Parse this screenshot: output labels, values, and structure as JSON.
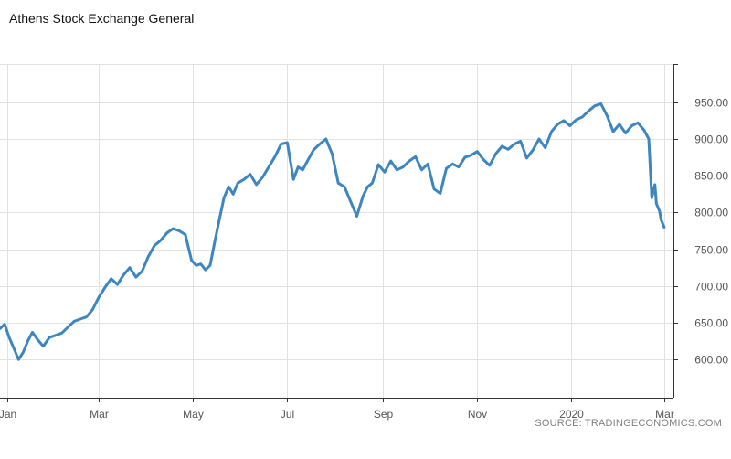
{
  "chart_data": {
    "type": "line",
    "title": "Athens Stock Exchange General",
    "source": "SOURCE: TRADINGECONOMICS.COM",
    "x_tick_labels": [
      "Jan",
      "Mar",
      "May",
      "Jul",
      "Sep",
      "Nov",
      "2020",
      "Mar"
    ],
    "y_ticks": [
      600,
      650,
      700,
      750,
      800,
      850,
      900,
      950
    ],
    "y_tick_labels": [
      "600.00",
      "650.00",
      "700.00",
      "750.00",
      "800.00",
      "850.00",
      "900.00",
      "950.00"
    ],
    "ylim": [
      548,
      1002
    ],
    "xlim": [
      "2018-12-27",
      "2020-03-07"
    ],
    "grid": true,
    "colors": {
      "line": "#3d86c0",
      "grid": "#e2e2e2",
      "axis": "#333333"
    },
    "series": [
      {
        "x": [
          "2018-12-27",
          "2018-12-30",
          "2019-01-02",
          "2019-01-05",
          "2019-01-08",
          "2019-01-11",
          "2019-01-14",
          "2019-01-17",
          "2019-01-20",
          "2019-01-24",
          "2019-01-28",
          "2019-02-01",
          "2019-02-05",
          "2019-02-09",
          "2019-02-13",
          "2019-02-17",
          "2019-02-21",
          "2019-02-25",
          "2019-03-01",
          "2019-03-05",
          "2019-03-09",
          "2019-03-13",
          "2019-03-17",
          "2019-03-21",
          "2019-03-25",
          "2019-03-29",
          "2019-04-02",
          "2019-04-06",
          "2019-04-10",
          "2019-04-14",
          "2019-04-18",
          "2019-04-22",
          "2019-04-26",
          "2019-04-30",
          "2019-05-03",
          "2019-05-06",
          "2019-05-09",
          "2019-05-12",
          "2019-05-15",
          "2019-05-18",
          "2019-05-21",
          "2019-05-24",
          "2019-05-27",
          "2019-05-30",
          "2019-06-03",
          "2019-06-07",
          "2019-06-11",
          "2019-06-15",
          "2019-06-19",
          "2019-06-23",
          "2019-06-27",
          "2019-07-01",
          "2019-07-05",
          "2019-07-08",
          "2019-07-11",
          "2019-07-14",
          "2019-07-18",
          "2019-07-22",
          "2019-07-26",
          "2019-07-30",
          "2019-08-03",
          "2019-08-07",
          "2019-08-11",
          "2019-08-15",
          "2019-08-19",
          "2019-08-22",
          "2019-08-25",
          "2019-08-29",
          "2019-09-02",
          "2019-09-06",
          "2019-09-10",
          "2019-09-14",
          "2019-09-18",
          "2019-09-22",
          "2019-09-26",
          "2019-09-30",
          "2019-10-04",
          "2019-10-08",
          "2019-10-12",
          "2019-10-16",
          "2019-10-20",
          "2019-10-24",
          "2019-10-28",
          "2019-11-01",
          "2019-11-05",
          "2019-11-09",
          "2019-11-13",
          "2019-11-17",
          "2019-11-21",
          "2019-11-25",
          "2019-11-29",
          "2019-12-03",
          "2019-12-07",
          "2019-12-11",
          "2019-12-15",
          "2019-12-19",
          "2019-12-23",
          "2019-12-27",
          "2019-12-31",
          "2020-01-04",
          "2020-01-08",
          "2020-01-12",
          "2020-01-16",
          "2020-01-20",
          "2020-01-24",
          "2020-01-28",
          "2020-02-01",
          "2020-02-05",
          "2020-02-09",
          "2020-02-13",
          "2020-02-17",
          "2020-02-20",
          "2020-02-22",
          "2020-02-24",
          "2020-02-25",
          "2020-02-27",
          "2020-02-28",
          "2020-03-01"
        ],
        "y": [
          642,
          648,
          630,
          615,
          600,
          610,
          625,
          637,
          628,
          618,
          630,
          633,
          636,
          644,
          652,
          655,
          658,
          668,
          685,
          698,
          710,
          702,
          715,
          725,
          712,
          720,
          740,
          755,
          762,
          772,
          778,
          775,
          770,
          735,
          728,
          730,
          722,
          728,
          760,
          790,
          820,
          835,
          825,
          840,
          845,
          852,
          838,
          848,
          862,
          876,
          893,
          895,
          845,
          862,
          858,
          870,
          885,
          893,
          900,
          880,
          840,
          835,
          815,
          795,
          822,
          835,
          840,
          865,
          855,
          870,
          858,
          862,
          870,
          876,
          858,
          866,
          832,
          826,
          860,
          866,
          862,
          875,
          878,
          883,
          872,
          864,
          880,
          890,
          886,
          893,
          897,
          874,
          885,
          900,
          888,
          910,
          920,
          925,
          918,
          926,
          930,
          938,
          945,
          948,
          932,
          910,
          920,
          908,
          918,
          922,
          912,
          900,
          820,
          838,
          812,
          802,
          790,
          780
        ]
      }
    ]
  }
}
